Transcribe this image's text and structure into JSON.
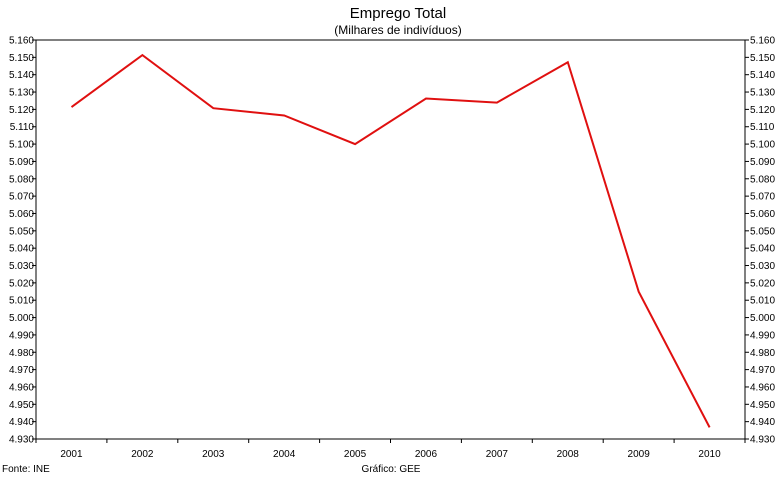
{
  "chart_data": {
    "type": "line",
    "title": "Emprego Total",
    "subtitle": "(Milhares de indivíduos)",
    "xlabel": "",
    "ylabel": "",
    "categories": [
      "2001",
      "2002",
      "2003",
      "2004",
      "2005",
      "2006",
      "2007",
      "2008",
      "2009",
      "2010"
    ],
    "series": [
      {
        "values": [
          5121.3,
          5151.3,
          5120.7,
          5116.5,
          5100.0,
          5126.3,
          5123.9,
          5147.2,
          5014.9,
          4936.7
        ],
        "color": "#e01010"
      }
    ],
    "ylim": [
      4930,
      5160
    ],
    "ytick_step": 10,
    "ytick_labels": [
      "4.930",
      "4.940",
      "4.950",
      "4.960",
      "4.970",
      "4.980",
      "4.990",
      "5.000",
      "5.010",
      "5.020",
      "5.030",
      "5.040",
      "5.050",
      "5.060",
      "5.070",
      "5.080",
      "5.090",
      "5.100",
      "5.110",
      "5.120",
      "5.130",
      "5.140",
      "5.150",
      "5.160"
    ],
    "y_axis_both_sides": true,
    "grid": false,
    "legend": "none"
  },
  "footer": {
    "source": "Fonte: INE",
    "credit": "Gráfico: GEE"
  }
}
